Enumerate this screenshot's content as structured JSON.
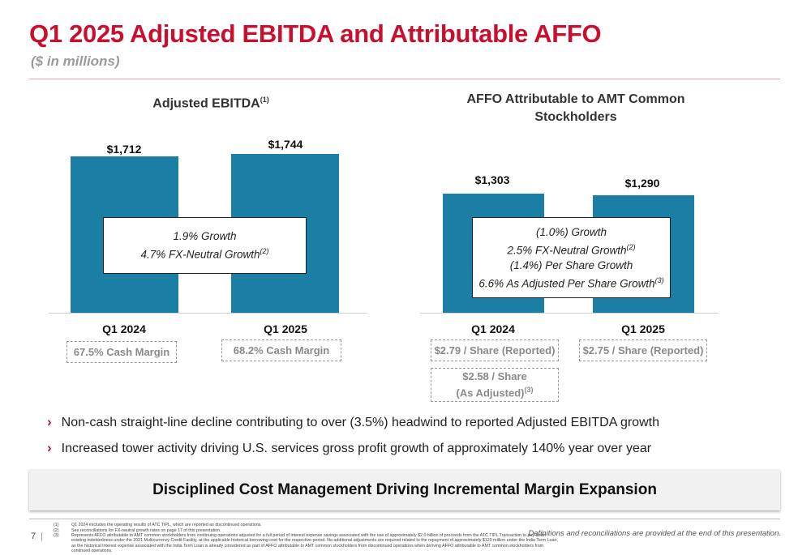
{
  "header": {
    "title": "Q1 2025 Adjusted EBITDA and Attributable AFFO",
    "subtitle": "($ in millions)"
  },
  "ebitda": {
    "title": "Adjusted EBITDA",
    "title_sup": "(1)",
    "bars": [
      {
        "category": "Q1 2024",
        "value_label": "$1,712",
        "value": 1712,
        "margin": "67.5% Cash Margin"
      },
      {
        "category": "Q1 2025",
        "value_label": "$1,744",
        "value": 1744,
        "margin": "68.2% Cash Margin"
      }
    ],
    "growth_line1": "1.9% Growth",
    "growth_line2": "4.7% FX-Neutral Growth",
    "growth_line2_sup": "(2)"
  },
  "affo": {
    "title_line1": "AFFO Attributable to AMT Common",
    "title_line2": "Stockholders",
    "bars": [
      {
        "category": "Q1 2024",
        "value_label": "$1,303",
        "value": 1303,
        "per_share": "$2.79 / Share (Reported)"
      },
      {
        "category": "Q1 2025",
        "value_label": "$1,290",
        "value": 1290,
        "per_share": "$2.75 / Share (Reported)"
      }
    ],
    "adjusted_line1": "$2.58 / Share",
    "adjusted_line2": "(As Adjusted)",
    "adjusted_sup": "(3)",
    "growth_line1": "(1.0%) Growth",
    "growth_line2": "2.5% FX-Neutral Growth",
    "growth_line2_sup": "(2)",
    "growth_line3": "(1.4%) Per Share Growth",
    "growth_line4": "6.6% As Adjusted Per Share Growth",
    "growth_line4_sup": "(3)"
  },
  "chart_data": [
    {
      "type": "bar",
      "title": "Adjusted EBITDA",
      "categories": [
        "Q1 2024",
        "Q1 2025"
      ],
      "values": [
        1712,
        1744
      ]
    },
    {
      "type": "bar",
      "title": "AFFO Attributable to AMT Common Stockholders",
      "categories": [
        "Q1 2024",
        "Q1 2025"
      ],
      "values": [
        1303,
        1290
      ]
    }
  ],
  "bullets": [
    "Non-cash straight-line decline contributing to over (3.5%) headwind to reported Adjusted EBITDA growth",
    "Increased tower activity driving U.S. services gross profit growth of approximately 140% year over year"
  ],
  "banner": "Disciplined Cost Management Driving Incremental Margin Expansion",
  "footer": {
    "page_number": "7",
    "footnotes": [
      {
        "num": "(1)",
        "text": "Q1 2024 excludes the operating results of ATC TIPL, which are reported as discontinued operations."
      },
      {
        "num": "(2)",
        "text": "See reconciliations for FX-neutral growth rates on page 17 of this presentation."
      },
      {
        "num": "(3)",
        "text": "Represents AFFO attributable to AMT common stockholders from continuing operations adjusted for a full period of interest expense savings associated with the use of approximately $2.0 billion of proceeds from the ATC TIPL Transaction to pay down existing indebtedness under the 2021 Multicurrency Credit Facility, at the applicable historical borrowing cost for the respective period. No additional adjustments are required related to the repayment of approximately $120 million under the India Term Loan, as the historical interest expense associated with the India Term Loan is already considered as part of AFFO attributable to AMT common stockholders from discontinued operations when deriving AFFO attributable to AMT common stockholders from continued operations."
      }
    ],
    "definitions_note": "Definitions and reconciliations are provided at the end of this presentation."
  },
  "colors": {
    "accent": "#c8102e",
    "bar": "#1a7ea5"
  }
}
